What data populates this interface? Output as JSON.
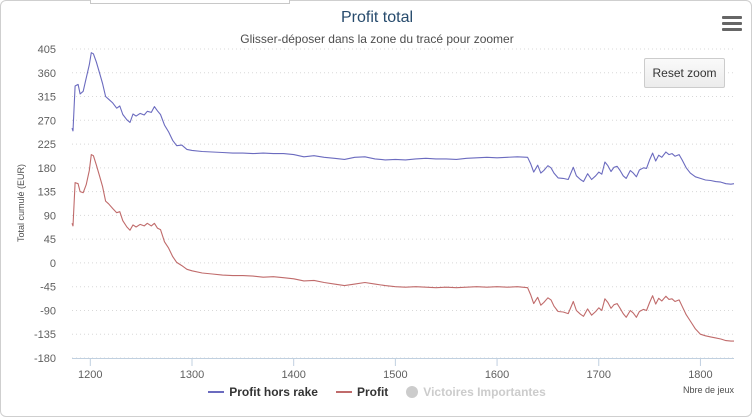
{
  "chart_data": {
    "type": "line",
    "title": "Profit total",
    "subtitle": "Glisser-déposer dans la zone du tracé pour zoomer",
    "xlabel": "Nbre de jeux",
    "ylabel": "Total cumulé (EUR)",
    "xlim": [
      1182,
      1833
    ],
    "ylim": [
      -180,
      405
    ],
    "x_ticks": [
      1200,
      1300,
      1400,
      1500,
      1600,
      1700,
      1800
    ],
    "y_ticks": [
      405,
      360,
      315,
      270,
      225,
      180,
      135,
      90,
      45,
      0,
      -45,
      -90,
      -135,
      -180
    ],
    "grid": "horizontal-dotted",
    "legend_position": "bottom",
    "series": [
      {
        "name": "Profit hors rake",
        "color": "#6b6bbf",
        "points": [
          [
            1182,
            255
          ],
          [
            1183,
            250
          ],
          [
            1185,
            335
          ],
          [
            1188,
            338
          ],
          [
            1190,
            320
          ],
          [
            1193,
            325
          ],
          [
            1196,
            350
          ],
          [
            1199,
            375
          ],
          [
            1201,
            398
          ],
          [
            1203,
            396
          ],
          [
            1206,
            380
          ],
          [
            1209,
            360
          ],
          [
            1212,
            340
          ],
          [
            1215,
            315
          ],
          [
            1218,
            310
          ],
          [
            1222,
            303
          ],
          [
            1226,
            293
          ],
          [
            1229,
            297
          ],
          [
            1232,
            281
          ],
          [
            1236,
            271
          ],
          [
            1239,
            266
          ],
          [
            1242,
            282
          ],
          [
            1245,
            278
          ],
          [
            1249,
            283
          ],
          [
            1253,
            280
          ],
          [
            1256,
            287
          ],
          [
            1260,
            285
          ],
          [
            1263,
            296
          ],
          [
            1266,
            288
          ],
          [
            1269,
            281
          ],
          [
            1273,
            261
          ],
          [
            1277,
            248
          ],
          [
            1281,
            232
          ],
          [
            1285,
            222
          ],
          [
            1290,
            223
          ],
          [
            1295,
            215
          ],
          [
            1300,
            213
          ],
          [
            1310,
            211
          ],
          [
            1320,
            210
          ],
          [
            1330,
            209
          ],
          [
            1340,
            208
          ],
          [
            1350,
            208
          ],
          [
            1360,
            207
          ],
          [
            1370,
            208
          ],
          [
            1380,
            207
          ],
          [
            1390,
            207
          ],
          [
            1400,
            205
          ],
          [
            1410,
            201
          ],
          [
            1420,
            203
          ],
          [
            1430,
            200
          ],
          [
            1440,
            198
          ],
          [
            1450,
            196
          ],
          [
            1460,
            200
          ],
          [
            1470,
            201
          ],
          [
            1480,
            197
          ],
          [
            1490,
            195
          ],
          [
            1500,
            196
          ],
          [
            1510,
            195
          ],
          [
            1520,
            197
          ],
          [
            1530,
            198
          ],
          [
            1540,
            197
          ],
          [
            1550,
            197
          ],
          [
            1560,
            196
          ],
          [
            1570,
            198
          ],
          [
            1580,
            199
          ],
          [
            1590,
            200
          ],
          [
            1600,
            199
          ],
          [
            1610,
            200
          ],
          [
            1620,
            201
          ],
          [
            1630,
            200
          ],
          [
            1633,
            188
          ],
          [
            1636,
            172
          ],
          [
            1640,
            185
          ],
          [
            1643,
            170
          ],
          [
            1646,
            175
          ],
          [
            1650,
            184
          ],
          [
            1653,
            180
          ],
          [
            1656,
            170
          ],
          [
            1660,
            161
          ],
          [
            1665,
            160
          ],
          [
            1670,
            158
          ],
          [
            1675,
            181
          ],
          [
            1678,
            165
          ],
          [
            1682,
            158
          ],
          [
            1685,
            154
          ],
          [
            1689,
            169
          ],
          [
            1693,
            158
          ],
          [
            1697,
            165
          ],
          [
            1700,
            172
          ],
          [
            1703,
            168
          ],
          [
            1706,
            191
          ],
          [
            1709,
            184
          ],
          [
            1712,
            173
          ],
          [
            1715,
            181
          ],
          [
            1718,
            183
          ],
          [
            1721,
            175
          ],
          [
            1724,
            165
          ],
          [
            1727,
            160
          ],
          [
            1731,
            175
          ],
          [
            1734,
            170
          ],
          [
            1737,
            163
          ],
          [
            1740,
            176
          ],
          [
            1744,
            180
          ],
          [
            1747,
            179
          ],
          [
            1750,
            195
          ],
          [
            1753,
            208
          ],
          [
            1756,
            193
          ],
          [
            1759,
            204
          ],
          [
            1762,
            200
          ],
          [
            1766,
            210
          ],
          [
            1769,
            205
          ],
          [
            1772,
            207
          ],
          [
            1775,
            202
          ],
          [
            1779,
            205
          ],
          [
            1782,
            195
          ],
          [
            1786,
            180
          ],
          [
            1790,
            170
          ],
          [
            1795,
            163
          ],
          [
            1800,
            160
          ],
          [
            1805,
            157
          ],
          [
            1810,
            156
          ],
          [
            1815,
            154
          ],
          [
            1820,
            153
          ],
          [
            1825,
            150
          ],
          [
            1830,
            149
          ],
          [
            1833,
            150
          ]
        ]
      },
      {
        "name": "Profit",
        "color": "#c06b6b",
        "points": [
          [
            1182,
            75
          ],
          [
            1183,
            70
          ],
          [
            1185,
            152
          ],
          [
            1188,
            150
          ],
          [
            1190,
            135
          ],
          [
            1193,
            133
          ],
          [
            1196,
            148
          ],
          [
            1199,
            175
          ],
          [
            1201,
            205
          ],
          [
            1203,
            203
          ],
          [
            1206,
            185
          ],
          [
            1209,
            165
          ],
          [
            1212,
            145
          ],
          [
            1215,
            117
          ],
          [
            1218,
            112
          ],
          [
            1222,
            103
          ],
          [
            1226,
            95
          ],
          [
            1229,
            97
          ],
          [
            1232,
            80
          ],
          [
            1236,
            68
          ],
          [
            1239,
            62
          ],
          [
            1242,
            72
          ],
          [
            1245,
            68
          ],
          [
            1249,
            73
          ],
          [
            1253,
            70
          ],
          [
            1256,
            75
          ],
          [
            1260,
            70
          ],
          [
            1263,
            75
          ],
          [
            1266,
            66
          ],
          [
            1269,
            63
          ],
          [
            1273,
            40
          ],
          [
            1277,
            28
          ],
          [
            1281,
            12
          ],
          [
            1285,
            1
          ],
          [
            1290,
            -5
          ],
          [
            1295,
            -12
          ],
          [
            1300,
            -15
          ],
          [
            1310,
            -19
          ],
          [
            1320,
            -21
          ],
          [
            1330,
            -23
          ],
          [
            1340,
            -24
          ],
          [
            1350,
            -24
          ],
          [
            1360,
            -25
          ],
          [
            1370,
            -27
          ],
          [
            1380,
            -26
          ],
          [
            1390,
            -28
          ],
          [
            1400,
            -30
          ],
          [
            1410,
            -34
          ],
          [
            1420,
            -33
          ],
          [
            1430,
            -37
          ],
          [
            1440,
            -40
          ],
          [
            1450,
            -43
          ],
          [
            1460,
            -40
          ],
          [
            1470,
            -37
          ],
          [
            1480,
            -40
          ],
          [
            1490,
            -43
          ],
          [
            1500,
            -45
          ],
          [
            1510,
            -46
          ],
          [
            1520,
            -45
          ],
          [
            1530,
            -46
          ],
          [
            1540,
            -47
          ],
          [
            1550,
            -46
          ],
          [
            1560,
            -47
          ],
          [
            1570,
            -46
          ],
          [
            1580,
            -45
          ],
          [
            1590,
            -46
          ],
          [
            1600,
            -45
          ],
          [
            1610,
            -46
          ],
          [
            1620,
            -45
          ],
          [
            1630,
            -47
          ],
          [
            1633,
            -60
          ],
          [
            1636,
            -77
          ],
          [
            1640,
            -65
          ],
          [
            1643,
            -80
          ],
          [
            1646,
            -75
          ],
          [
            1650,
            -66
          ],
          [
            1653,
            -70
          ],
          [
            1656,
            -82
          ],
          [
            1660,
            -92
          ],
          [
            1665,
            -93
          ],
          [
            1670,
            -96
          ],
          [
            1675,
            -73
          ],
          [
            1678,
            -90
          ],
          [
            1682,
            -97
          ],
          [
            1685,
            -101
          ],
          [
            1689,
            -87
          ],
          [
            1693,
            -99
          ],
          [
            1697,
            -92
          ],
          [
            1700,
            -85
          ],
          [
            1703,
            -90
          ],
          [
            1706,
            -68
          ],
          [
            1709,
            -75
          ],
          [
            1712,
            -86
          ],
          [
            1715,
            -79
          ],
          [
            1718,
            -77
          ],
          [
            1721,
            -86
          ],
          [
            1724,
            -96
          ],
          [
            1727,
            -103
          ],
          [
            1731,
            -90
          ],
          [
            1734,
            -95
          ],
          [
            1737,
            -103
          ],
          [
            1740,
            -92
          ],
          [
            1744,
            -88
          ],
          [
            1747,
            -90
          ],
          [
            1750,
            -75
          ],
          [
            1753,
            -62
          ],
          [
            1756,
            -78
          ],
          [
            1759,
            -67
          ],
          [
            1762,
            -72
          ],
          [
            1766,
            -63
          ],
          [
            1769,
            -69
          ],
          [
            1772,
            -68
          ],
          [
            1775,
            -73
          ],
          [
            1779,
            -70
          ],
          [
            1782,
            -82
          ],
          [
            1786,
            -98
          ],
          [
            1790,
            -110
          ],
          [
            1795,
            -125
          ],
          [
            1800,
            -135
          ],
          [
            1805,
            -138
          ],
          [
            1810,
            -140
          ],
          [
            1815,
            -142
          ],
          [
            1820,
            -144
          ],
          [
            1825,
            -147
          ],
          [
            1830,
            -148
          ],
          [
            1833,
            -148
          ]
        ]
      },
      {
        "name": "Victoires Importantes",
        "color": "#cccccc",
        "hidden": true,
        "points": []
      }
    ]
  },
  "toolbar": {
    "reset_zoom_label": "Reset zoom",
    "menu_icon": "hamburger-menu-icon"
  }
}
